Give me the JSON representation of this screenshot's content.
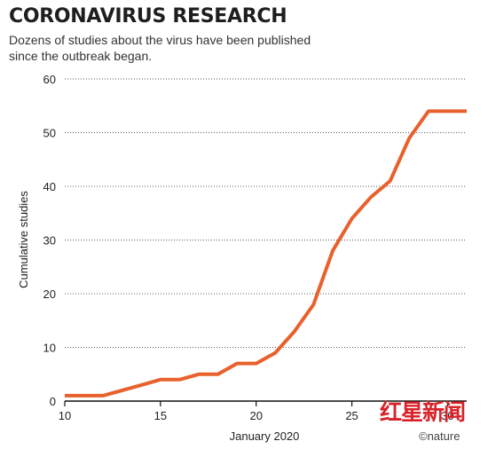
{
  "header": {
    "title": "CORONAVIRUS RESEARCH",
    "subtitle": "Dozens of studies about the virus have been published since the outbreak began."
  },
  "watermarks": {
    "publisher_cn": "红星新闻",
    "source": "©nature"
  },
  "colors": {
    "line": "#e8612c",
    "grid": "#555555",
    "axis": "#111111"
  },
  "chart_data": {
    "type": "line",
    "title": "CORONAVIRUS RESEARCH",
    "subtitle": "Dozens of studies about the virus have been published since the outbreak began.",
    "xlabel": "January 2020",
    "ylabel": "Cumulative studies",
    "xlim": [
      10,
      31
    ],
    "ylim": [
      0,
      60
    ],
    "xticks": [
      10,
      15,
      20,
      25,
      30
    ],
    "yticks": [
      0,
      10,
      20,
      30,
      40,
      50,
      60
    ],
    "grid": "horizontal dotted",
    "series": [
      {
        "x": [
          10,
          11,
          12,
          13,
          14,
          15,
          16,
          17,
          18,
          19,
          20,
          21,
          22,
          23,
          24,
          25,
          26,
          27,
          28,
          29,
          30,
          31
        ],
        "y": [
          1,
          1,
          1,
          2,
          3,
          4,
          4,
          5,
          5,
          7,
          7,
          9,
          13,
          18,
          28,
          34,
          38,
          41,
          49,
          54,
          54,
          54
        ]
      }
    ]
  }
}
